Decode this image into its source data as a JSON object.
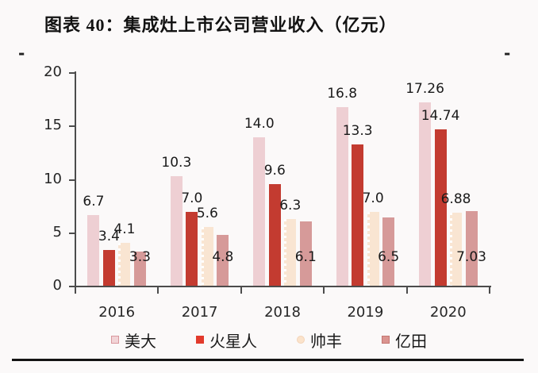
{
  "page": {
    "left_margin_dash": "-",
    "right_margin_dash": "-"
  },
  "colors": {
    "background": "#fbf9f9",
    "axis": "#4c4c4c",
    "text": "#262626",
    "title": "#121212",
    "rule": "#141414"
  },
  "chart_data": {
    "type": "bar",
    "title": "图表 40：集成灶上市公司营业收入（亿元）",
    "categories": [
      "2016",
      "2017",
      "2018",
      "2019",
      "2020"
    ],
    "series": [
      {
        "name": "美大",
        "color": "#eecfd3",
        "marker": {
          "shape": "square",
          "fill": "#f2d4d7",
          "border": "#d9979d"
        },
        "values": [
          6.7,
          10.3,
          14.0,
          16.8,
          17.26
        ],
        "labels": [
          "6.7",
          "10.3",
          "14.0",
          "16.8",
          "17.26"
        ]
      },
      {
        "name": "火星人",
        "color": "#c33b30",
        "marker": {
          "shape": "square",
          "fill": "#e23a2c",
          "border": "#e23a2c"
        },
        "values": [
          3.4,
          7.0,
          9.6,
          13.3,
          14.74
        ],
        "labels": [
          "3.4",
          "7.0",
          "9.6",
          "13.3",
          "14.74"
        ]
      },
      {
        "name": "帅丰",
        "color": "#f9e5d2",
        "pattern": "white-dash-left-edge",
        "marker": {
          "shape": "circle",
          "fill": "#fbe3cb",
          "border": "#f3d4b8"
        },
        "values": [
          4.1,
          5.6,
          6.3,
          7.0,
          6.88
        ],
        "labels": [
          "4.1",
          "5.6",
          "6.3",
          "7.0",
          "6.88"
        ]
      },
      {
        "name": "亿田",
        "color": "#d69a99",
        "marker": {
          "shape": "square",
          "fill": "#db9490",
          "border": "#c47672"
        },
        "values": [
          3.3,
          4.8,
          6.1,
          6.5,
          7.03
        ],
        "labels": [
          "3.3",
          "4.8",
          "6.1",
          "6.5",
          "7.03"
        ]
      }
    ],
    "ylim": [
      0,
      20
    ],
    "yticks": [
      "0",
      "5",
      "10",
      "15",
      "20"
    ],
    "xlabel": "",
    "ylabel": "",
    "grid": false,
    "legend_position": "bottom"
  }
}
